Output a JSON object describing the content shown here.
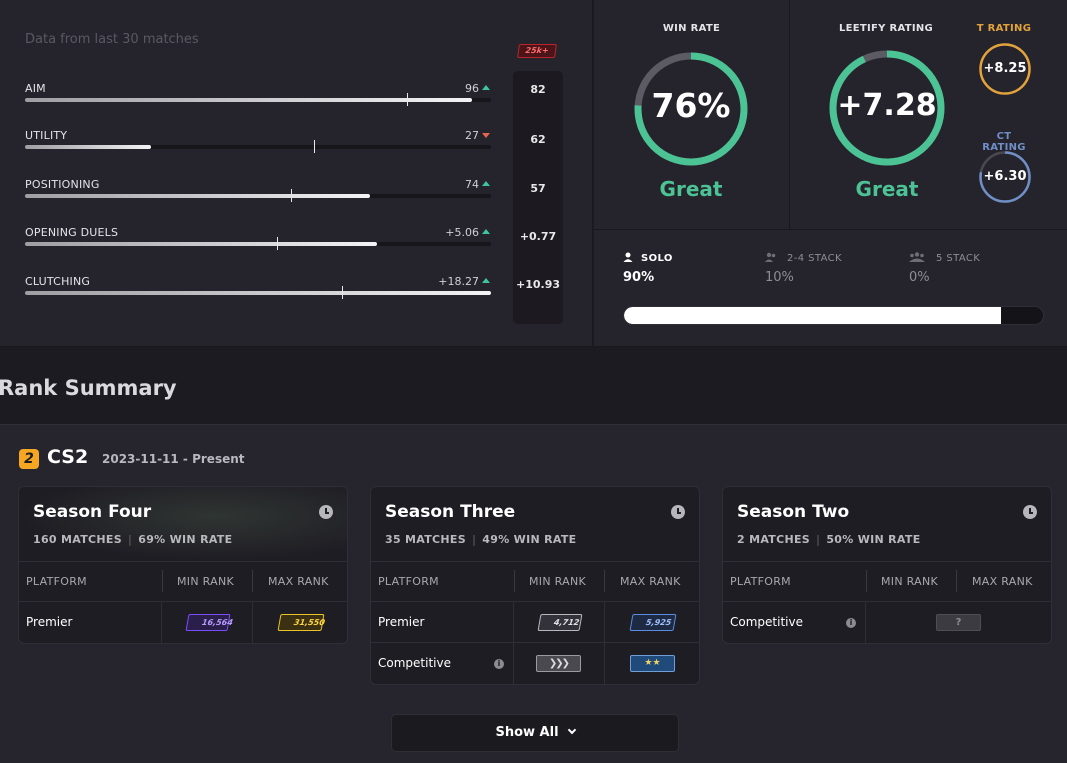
{
  "stats": {
    "subtitle": "Data from last 30 matches",
    "benchmark_badge": "25k+",
    "items": [
      {
        "label": "AIM",
        "value": "96",
        "trend": "up",
        "fill_fraction": 0.96,
        "bench_fraction": 0.82,
        "benchmark": "82"
      },
      {
        "label": "UTILITY",
        "value": "27",
        "trend": "down",
        "fill_fraction": 0.27,
        "bench_fraction": 0.62,
        "benchmark": "62"
      },
      {
        "label": "POSITIONING",
        "value": "74",
        "trend": "up",
        "fill_fraction": 0.74,
        "bench_fraction": 0.57,
        "benchmark": "57"
      },
      {
        "label": "OPENING DUELS",
        "value": "+5.06",
        "trend": "up",
        "fill_fraction": 0.755,
        "bench_fraction": 0.54,
        "benchmark": "+0.77"
      },
      {
        "label": "CLUTCHING",
        "value": "+18.27",
        "trend": "up",
        "fill_fraction": 1.0,
        "bench_fraction": 0.68,
        "benchmark": "+10.93"
      }
    ]
  },
  "win_rate": {
    "title": "WIN RATE",
    "value": "76%",
    "fraction": 0.76,
    "verdict": "Great"
  },
  "leetify_rating": {
    "title": "LEETIFY RATING",
    "value": "+7.28",
    "fraction": 0.93,
    "verdict": "Great"
  },
  "t_rating": {
    "title": "T RATING",
    "value": "+8.25",
    "color": "#e2a23c"
  },
  "ct_rating": {
    "title": "CT RATING",
    "value": "+6.30",
    "color": "#6f8fc7"
  },
  "stacks": {
    "items": [
      {
        "label": "SOLO",
        "value": "90%",
        "icon": "person-icon"
      },
      {
        "label": "2-4 STACK",
        "value": "10%",
        "icon": "group-icon"
      },
      {
        "label": "5 STACK",
        "value": "0%",
        "icon": "team-icon"
      }
    ],
    "solo_fraction": 0.9
  },
  "rank_summary": {
    "heading": "Rank Summary",
    "game": "CS2",
    "date_range": "2023-11-11 - Present",
    "columns": {
      "platform": "PLATFORM",
      "min": "MIN RANK",
      "max": "MAX RANK"
    },
    "seasons": [
      {
        "name": "Season Four",
        "matches": "160 MATCHES",
        "win_rate": "69% WIN RATE",
        "rows": [
          {
            "platform": "Premier",
            "min": "16,564",
            "max": "31,550"
          }
        ]
      },
      {
        "name": "Season Three",
        "matches": "35 MATCHES",
        "win_rate": "49% WIN RATE",
        "rows": [
          {
            "platform": "Premier",
            "min": "4,712",
            "max": "5,925"
          },
          {
            "platform": "Competitive",
            "min": "",
            "max": ""
          }
        ]
      },
      {
        "name": "Season Two",
        "matches": "2 MATCHES",
        "win_rate": "50% WIN RATE",
        "rows": [
          {
            "platform": "Competitive",
            "unknown": "?"
          }
        ]
      }
    ],
    "show_all": "Show All"
  },
  "colors": {
    "accent_green": "#4cc394",
    "bg": "#1d1b22",
    "panel": "#25232b"
  }
}
